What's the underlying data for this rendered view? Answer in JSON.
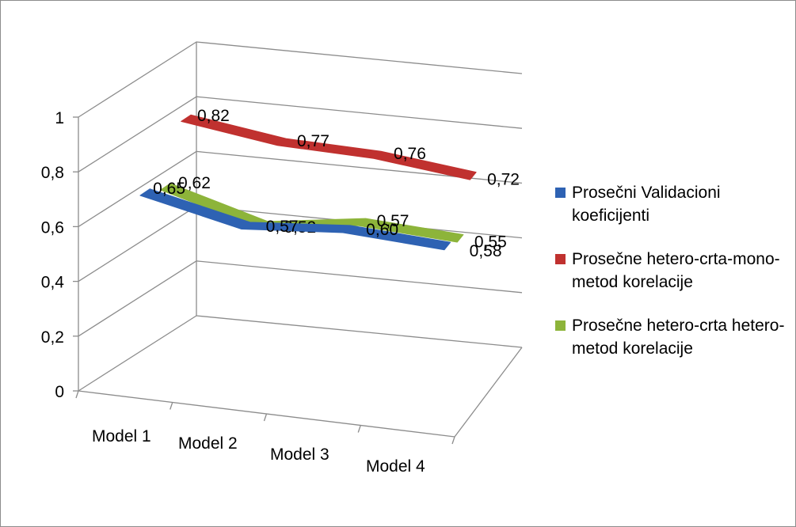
{
  "chart_data": {
    "type": "line",
    "style": "3d-ribbon",
    "categories": [
      "Model 1",
      "Model 2",
      "Model 3",
      "Model 4"
    ],
    "y_ticks": [
      "0",
      "0,2",
      "0,4",
      "0,6",
      "0,8",
      "1"
    ],
    "ylim": [
      0,
      1
    ],
    "grid": true,
    "legend_position": "right",
    "series": [
      {
        "name": "Prosečni Validacioni koeficijenti",
        "values": [
          0.65,
          0.57,
          0.6,
          0.58
        ],
        "labels": [
          "0,65",
          "0,57",
          "0,60",
          "0,58"
        ],
        "color": "#2e62b3"
      },
      {
        "name": "Prosečne hetero-crta-mono-metod korelacije",
        "values": [
          0.82,
          0.77,
          0.76,
          0.72
        ],
        "labels": [
          "0,82",
          "0,77",
          "0,76",
          "0,72"
        ],
        "color": "#c0312f"
      },
      {
        "name": "Prosečne hetero-crta hetero-metod korelacije",
        "values": [
          0.62,
          0.52,
          0.57,
          0.55
        ],
        "labels": [
          "0,62",
          "0,52",
          "0,57",
          "0,55"
        ],
        "color": "#8db43a"
      }
    ]
  }
}
